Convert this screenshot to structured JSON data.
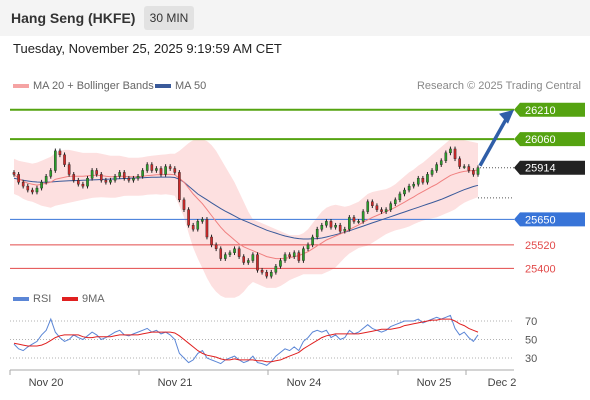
{
  "header": {
    "instrument": "Hang Seng (HKFE)",
    "timeframe": "30 MIN",
    "datetime": "Tuesday, November 25, 2025 9:19:59 AM CET"
  },
  "legend": {
    "ma20": {
      "label": "MA 20 + Bollinger Bands",
      "color": "#f08080"
    },
    "ma50": {
      "label": "MA 50",
      "color": "#3a5a9a"
    },
    "credit": "Research © 2025 Trading Central"
  },
  "rsi_legend": {
    "rsi": {
      "label": "RSI",
      "color": "#5b86d6"
    },
    "ma9": {
      "label": "9MA",
      "color": "#e02020"
    }
  },
  "chart_data": {
    "type": "candlestick",
    "x_labels": [
      "Nov 20",
      "Nov 21",
      "Nov 24",
      "Nov 25",
      "Dec 2"
    ],
    "price_range": [
      25320,
      26260
    ],
    "last_price": "25914",
    "levels": [
      {
        "value": 26210,
        "label": "26210",
        "color": "#55a311",
        "style": "badge-target"
      },
      {
        "value": 26060,
        "label": "26060",
        "color": "#55a311",
        "style": "badge"
      },
      {
        "value": 25914,
        "label": "25914",
        "color": "#222222",
        "style": "badge-last"
      },
      {
        "value": 25650,
        "label": "25650",
        "color": "#3874d8",
        "style": "badge"
      },
      {
        "value": 25520,
        "label": "25520",
        "color": "#e24a4a",
        "style": "text"
      },
      {
        "value": 25400,
        "label": "25400",
        "color": "#e24a4a",
        "style": "text"
      }
    ],
    "closes": [
      25880,
      25840,
      25820,
      25800,
      25790,
      25810,
      25840,
      25870,
      25900,
      26000,
      25980,
      25930,
      25880,
      25850,
      25830,
      25820,
      25860,
      25900,
      25880,
      25850,
      25840,
      25850,
      25870,
      25890,
      25860,
      25850,
      25860,
      25870,
      25900,
      25930,
      25900,
      25910,
      25880,
      25920,
      25910,
      25890,
      25750,
      25700,
      25620,
      25600,
      25640,
      25650,
      25560,
      25520,
      25500,
      25450,
      25470,
      25480,
      25500,
      25460,
      25430,
      25440,
      25470,
      25390,
      25380,
      25360,
      25380,
      25410,
      25440,
      25470,
      25460,
      25480,
      25440,
      25500,
      25520,
      25560,
      25600,
      25620,
      25640,
      25610,
      25620,
      25590,
      25600,
      25660,
      25640,
      25640,
      25690,
      25740,
      25720,
      25700,
      25690,
      25700,
      25730,
      25750,
      25780,
      25800,
      25820,
      25830,
      25860,
      25840,
      25880,
      25900,
      25930,
      25950,
      25990,
      26010,
      25960,
      25920,
      25920,
      25900,
      25880,
      25914
    ],
    "ma20": [
      25880,
      25860,
      25845,
      25835,
      25830,
      25825,
      25830,
      25835,
      25840,
      25855,
      25860,
      25865,
      25870,
      25870,
      25870,
      25870,
      25872,
      25875,
      25876,
      25874,
      25870,
      25868,
      25868,
      25870,
      25870,
      25868,
      25868,
      25868,
      25870,
      25874,
      25876,
      25878,
      25878,
      25880,
      25880,
      25878,
      25860,
      25840,
      25810,
      25780,
      25755,
      25730,
      25700,
      25670,
      25640,
      25610,
      25585,
      25565,
      25545,
      25525,
      25510,
      25500,
      25490,
      25480,
      25470,
      25460,
      25455,
      25450,
      25450,
      25452,
      25455,
      25460,
      25465,
      25475,
      25485,
      25500,
      25515,
      25530,
      25545,
      25555,
      25565,
      25575,
      25585,
      25598,
      25610,
      25622,
      25635,
      25648,
      25660,
      25670,
      25680,
      25690,
      25700,
      25712,
      25725,
      25738,
      25752,
      25765,
      25780,
      25792,
      25805,
      25818,
      25830,
      25845,
      25860,
      25875,
      25883,
      25890,
      25895,
      25898,
      25900,
      25902
    ],
    "bb_upper": [
      25960,
      25950,
      25945,
      25940,
      25935,
      25940,
      25950,
      25960,
      25970,
      25990,
      26000,
      26005,
      26005,
      26000,
      25995,
      25990,
      25990,
      25990,
      25990,
      25985,
      25980,
      25975,
      25975,
      25975,
      25970,
      25965,
      25965,
      25965,
      25968,
      25972,
      25975,
      25978,
      25980,
      25982,
      25985,
      25985,
      26000,
      26020,
      26040,
      26055,
      26060,
      26060,
      26050,
      26030,
      26000,
      25960,
      25920,
      25880,
      25840,
      25790,
      25740,
      25690,
      25650,
      25640,
      25630,
      25620,
      25610,
      25600,
      25590,
      25580,
      25570,
      25570,
      25570,
      25580,
      25600,
      25630,
      25660,
      25690,
      25710,
      25720,
      25725,
      25720,
      25715,
      25720,
      25730,
      25740,
      25760,
      25780,
      25790,
      25795,
      25800,
      25805,
      25815,
      25830,
      25850,
      25870,
      25890,
      25905,
      25925,
      25940,
      25960,
      25980,
      26000,
      26020,
      26040,
      26060,
      26065,
      26060,
      26055,
      26050,
      26045,
      26040
    ],
    "bb_lower": [
      25780,
      25770,
      25755,
      25745,
      25740,
      25730,
      25720,
      25715,
      25710,
      25720,
      25725,
      25730,
      25735,
      25740,
      25745,
      25750,
      25755,
      25760,
      25762,
      25763,
      25762,
      25761,
      25761,
      25765,
      25770,
      25771,
      25771,
      25771,
      25772,
      25776,
      25777,
      25778,
      25776,
      25778,
      25775,
      25771,
      25720,
      25660,
      25580,
      25505,
      25450,
      25400,
      25350,
      25310,
      25280,
      25260,
      25250,
      25250,
      25250,
      25260,
      25280,
      25310,
      25330,
      25320,
      25310,
      25300,
      25300,
      25300,
      25310,
      25324,
      25340,
      25350,
      25360,
      25370,
      25370,
      25370,
      25370,
      25370,
      25380,
      25390,
      25405,
      25430,
      25455,
      25476,
      25490,
      25504,
      25510,
      25516,
      25530,
      25545,
      25560,
      25575,
      25585,
      25594,
      25600,
      25606,
      25614,
      25625,
      25635,
      25644,
      25650,
      25656,
      25660,
      25670,
      25680,
      25690,
      25701,
      25720,
      25735,
      25746,
      25755,
      25764
    ],
    "ma50": [
      25860,
      25855,
      25850,
      25846,
      25843,
      25841,
      25840,
      25840,
      25841,
      25843,
      25845,
      25846,
      25847,
      25848,
      25849,
      25850,
      25851,
      25852,
      25853,
      25854,
      25855,
      25856,
      25857,
      25858,
      25859,
      25860,
      25861,
      25862,
      25863,
      25864,
      25865,
      25865,
      25866,
      25866,
      25866,
      25864,
      25855,
      25840,
      25820,
      25800,
      25780,
      25765,
      25750,
      25735,
      25720,
      25705,
      25692,
      25680,
      25668,
      25655,
      25645,
      25635,
      25625,
      25615,
      25605,
      25595,
      25587,
      25580,
      25572,
      25565,
      25560,
      25555,
      25552,
      25550,
      25550,
      25551,
      25552,
      25555,
      25560,
      25566,
      25572,
      25578,
      25585,
      25592,
      25600,
      25608,
      25616,
      25624,
      25632,
      25640,
      25648,
      25656,
      25664,
      25672,
      25680,
      25688,
      25696,
      25704,
      25712,
      25720,
      25728,
      25736,
      25744,
      25752,
      25762,
      25772,
      25782,
      25792,
      25802,
      25810,
      25818,
      25824
    ],
    "rsi_ticks": [
      70,
      50,
      30
    ],
    "rsi": [
      45,
      40,
      38,
      42,
      45,
      48,
      55,
      60,
      72,
      58,
      52,
      48,
      50,
      55,
      52,
      50,
      54,
      58,
      55,
      50,
      52,
      55,
      58,
      60,
      55,
      54,
      56,
      58,
      60,
      62,
      58,
      60,
      56,
      58,
      55,
      50,
      35,
      30,
      25,
      28,
      35,
      38,
      30,
      28,
      26,
      24,
      28,
      30,
      32,
      28,
      25,
      27,
      32,
      25,
      24,
      22,
      26,
      32,
      36,
      40,
      38,
      42,
      38,
      48,
      52,
      58,
      60,
      58,
      60,
      52,
      55,
      50,
      52,
      60,
      56,
      58,
      62,
      66,
      62,
      60,
      58,
      60,
      64,
      66,
      68,
      70,
      70,
      70,
      72,
      68,
      70,
      72,
      74,
      72,
      74,
      76,
      62,
      55,
      58,
      52,
      48,
      55
    ],
    "rsi_ma9": [
      46,
      45,
      44,
      43,
      43,
      43,
      44,
      46,
      49,
      52,
      54,
      55,
      55,
      55,
      55,
      53,
      52,
      52,
      53,
      53,
      53,
      53,
      54,
      55,
      55,
      55,
      55,
      55,
      56,
      57,
      58,
      58,
      58,
      58,
      58,
      57,
      54,
      50,
      46,
      42,
      38,
      35,
      33,
      32,
      31,
      29,
      28,
      28,
      29,
      28,
      28,
      28,
      28,
      27,
      27,
      26,
      26,
      27,
      28,
      30,
      32,
      34,
      36,
      40,
      43,
      46,
      49,
      52,
      54,
      55,
      56,
      56,
      56,
      56,
      56,
      56,
      57,
      58,
      59,
      60,
      61,
      61,
      61,
      62,
      63,
      65,
      66,
      67,
      68,
      69,
      70,
      71,
      71,
      72,
      72,
      72,
      70,
      67,
      65,
      62,
      60,
      58
    ]
  }
}
